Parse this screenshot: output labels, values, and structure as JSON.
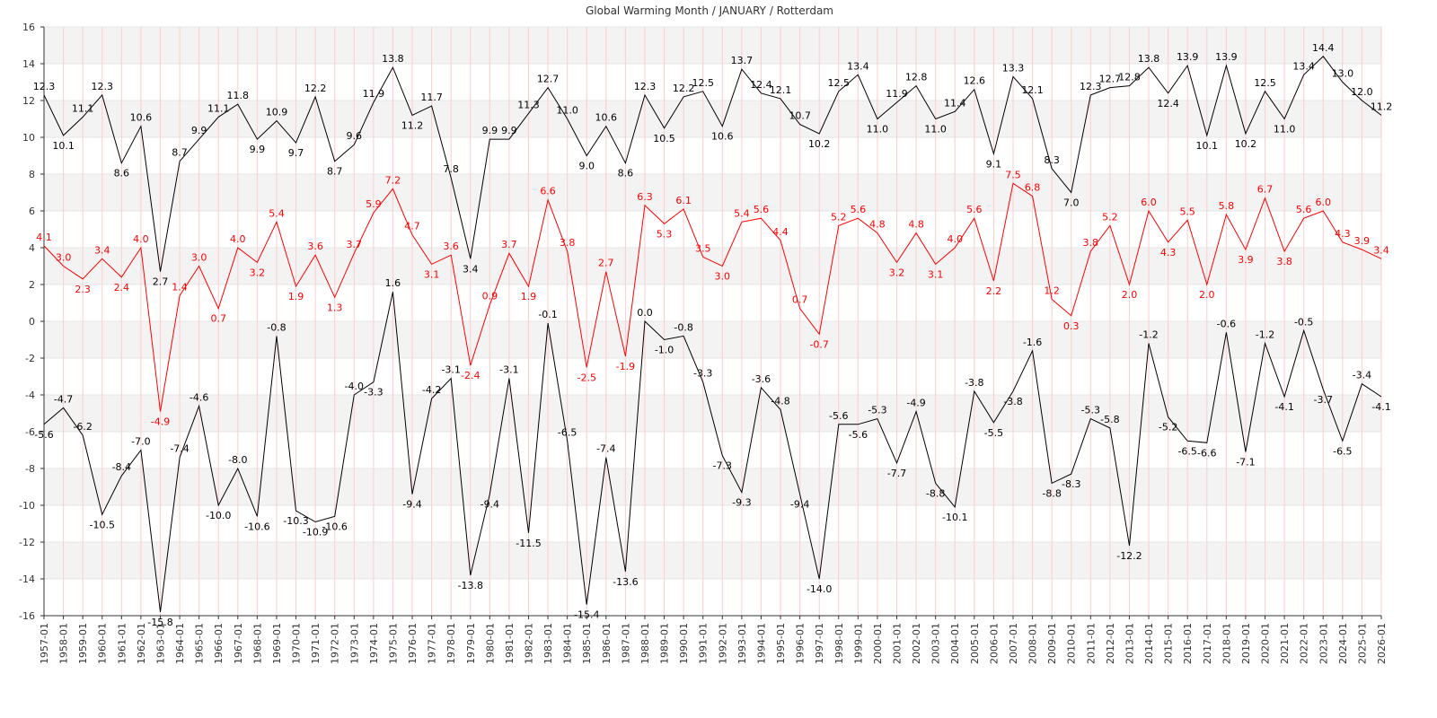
{
  "chart_data": {
    "type": "line",
    "title": "Global Warming Month / JANUARY / Rotterdam",
    "xlabel": "",
    "ylabel": "",
    "ylim": [
      -16,
      16
    ],
    "yticks": [
      -16,
      -14,
      -12,
      -10,
      -8,
      -6,
      -4,
      -2,
      0,
      2,
      4,
      6,
      8,
      10,
      12,
      14,
      16
    ],
    "grid": true,
    "x": [
      "1957-01",
      "1958-01",
      "1959-01",
      "1960-01",
      "1961-01",
      "1962-01",
      "1963-01",
      "1964-01",
      "1965-01",
      "1966-01",
      "1967-01",
      "1968-01",
      "1969-01",
      "1970-01",
      "1971-01",
      "1972-01",
      "1973-01",
      "1974-01",
      "1975-01",
      "1976-01",
      "1977-01",
      "1978-01",
      "1979-01",
      "1980-01",
      "1981-01",
      "1982-01",
      "1983-01",
      "1984-01",
      "1985-01",
      "1986-01",
      "1987-01",
      "1988-01",
      "1989-01",
      "1990-01",
      "1991-01",
      "1992-01",
      "1993-01",
      "1994-01",
      "1995-01",
      "1996-01",
      "1997-01",
      "1998-01",
      "1999-01",
      "2000-01",
      "2001-01",
      "2002-01",
      "2003-01",
      "2004-01",
      "2005-01",
      "2006-01",
      "2007-01",
      "2008-01",
      "2009-01",
      "2010-01",
      "2011-01",
      "2012-01",
      "2013-01",
      "2014-01",
      "2015-01",
      "2016-01",
      "2017-01",
      "2018-01",
      "2019-01",
      "2020-01",
      "2021-01",
      "2022-01",
      "2023-01",
      "2024-01",
      "2025-01",
      "2026-01"
    ],
    "series": [
      {
        "name": "max",
        "color": "#000000",
        "values": [
          12.3,
          10.1,
          11.1,
          12.3,
          8.6,
          10.6,
          2.7,
          8.7,
          9.9,
          11.1,
          11.8,
          9.9,
          10.9,
          9.7,
          12.2,
          8.7,
          9.6,
          11.9,
          13.8,
          11.2,
          11.7,
          7.8,
          3.4,
          9.9,
          9.9,
          11.3,
          12.7,
          11.0,
          9.0,
          10.6,
          8.6,
          12.3,
          10.5,
          12.2,
          12.5,
          10.6,
          13.7,
          12.4,
          12.1,
          10.7,
          10.2,
          12.5,
          13.4,
          11.0,
          11.9,
          12.8,
          11.0,
          11.4,
          12.6,
          9.1,
          13.3,
          12.1,
          8.3,
          7.0,
          12.3,
          12.7,
          12.8,
          13.8,
          12.4,
          13.9,
          10.1,
          13.9,
          10.2,
          12.5,
          11.0,
          13.4,
          14.4,
          13.0,
          12.0,
          11.2
        ]
      },
      {
        "name": "mean",
        "color": "#ff0000",
        "values": [
          4.1,
          3.0,
          2.3,
          3.4,
          2.4,
          4.0,
          -4.9,
          1.4,
          3.0,
          0.7,
          4.0,
          3.2,
          5.4,
          1.9,
          3.6,
          1.3,
          3.7,
          5.9,
          7.2,
          4.7,
          3.1,
          3.6,
          -2.4,
          0.9,
          3.7,
          1.9,
          6.6,
          3.8,
          -2.5,
          2.7,
          -1.9,
          6.3,
          5.3,
          6.1,
          3.5,
          3.0,
          5.4,
          5.6,
          4.4,
          0.7,
          -0.7,
          5.2,
          5.6,
          4.8,
          3.2,
          4.8,
          3.1,
          4.0,
          5.6,
          2.2,
          7.5,
          6.8,
          1.2,
          0.3,
          3.8,
          5.2,
          2.0,
          6.0,
          4.3,
          5.5,
          2.0,
          5.8,
          3.9,
          6.7,
          3.8,
          5.6,
          6.0,
          4.3,
          3.9,
          3.4
        ]
      },
      {
        "name": "min",
        "color": "#000000",
        "values": [
          -5.6,
          -4.7,
          -6.2,
          -10.5,
          -8.4,
          -7.0,
          -15.8,
          -7.4,
          -4.6,
          -10.0,
          -8.0,
          -10.6,
          -0.8,
          -10.3,
          -10.9,
          -10.6,
          -4.0,
          -3.3,
          1.6,
          -9.4,
          -4.2,
          -3.1,
          -13.8,
          -9.4,
          -3.1,
          -11.5,
          -0.1,
          -6.5,
          -15.4,
          -7.4,
          -13.6,
          0.0,
          -1.0,
          -0.8,
          -3.3,
          -7.3,
          -9.3,
          -3.6,
          -4.8,
          -9.4,
          -14.0,
          -5.6,
          -5.6,
          -5.3,
          -7.7,
          -4.9,
          -8.8,
          -10.1,
          -3.8,
          -5.5,
          -3.8,
          -1.6,
          -8.8,
          -8.3,
          -5.3,
          -5.8,
          -12.2,
          -1.2,
          -5.2,
          -6.5,
          -6.6,
          -0.6,
          -7.1,
          -1.2,
          -4.1,
          -0.5,
          -3.7,
          -6.5,
          -3.4,
          -4.1
        ]
      }
    ]
  }
}
